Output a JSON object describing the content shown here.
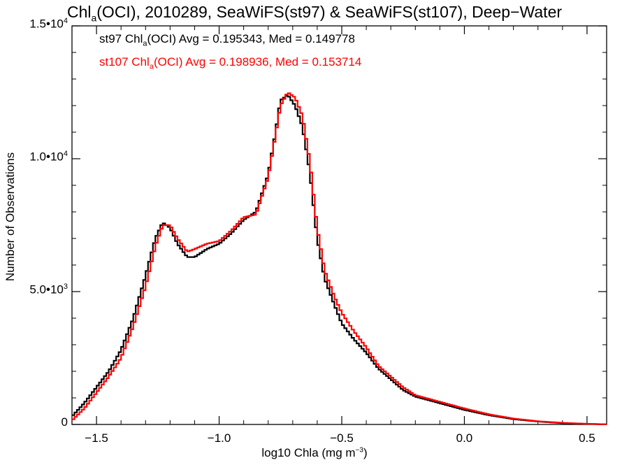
{
  "chart_data": {
    "type": "line",
    "title": {
      "pre": "Chl",
      "sub": "a",
      "post": "(OCI), 2010289, SeaWiFS(st97) & SeaWiFS(st107), Deep−Water"
    },
    "xlabel": {
      "pre": "log10 Chla (mg m",
      "sup": "−3",
      "post": ")"
    },
    "ylabel": "Number of Observations",
    "xlim": [
      -1.6,
      0.58
    ],
    "ylim": [
      0,
      15000
    ],
    "xticks": [
      "−1.5",
      "−1.0",
      "−0.5",
      "0.0",
      "0.5"
    ],
    "xtick_values": [
      -1.5,
      -1.0,
      -0.5,
      0.0,
      0.5
    ],
    "yticks": [
      {
        "value": 0,
        "mant": "0",
        "exp": ""
      },
      {
        "value": 5000,
        "mant": "5.0•10",
        "exp": "3"
      },
      {
        "value": 10000,
        "mant": "1.0•10",
        "exp": "4"
      },
      {
        "value": 15000,
        "mant": "1.5•10",
        "exp": "4"
      }
    ],
    "grid": false,
    "step": "histogram",
    "annotations": [
      {
        "pre": "st97 Chl",
        "sub": "a",
        "post": "(OCI) Avg = 0.195343, Med = 0.149778",
        "color": "#000000"
      },
      {
        "pre": "st107 Chl",
        "sub": "a",
        "post": "(OCI) Avg = 0.198936, Med = 0.153714",
        "color": "#ff0000"
      }
    ],
    "series": [
      {
        "name": "st97",
        "color": "#000000",
        "points": [
          [
            -1.6,
            300
          ],
          [
            -1.55,
            800
          ],
          [
            -1.5,
            1400
          ],
          [
            -1.45,
            2000
          ],
          [
            -1.4,
            2800
          ],
          [
            -1.35,
            4000
          ],
          [
            -1.3,
            5600
          ],
          [
            -1.26,
            7000
          ],
          [
            -1.23,
            7600
          ],
          [
            -1.2,
            7400
          ],
          [
            -1.17,
            6800
          ],
          [
            -1.13,
            6300
          ],
          [
            -1.1,
            6300
          ],
          [
            -1.05,
            6600
          ],
          [
            -1.0,
            6800
          ],
          [
            -0.95,
            7200
          ],
          [
            -0.9,
            7700
          ],
          [
            -0.85,
            8000
          ],
          [
            -0.8,
            9400
          ],
          [
            -0.77,
            11000
          ],
          [
            -0.75,
            12200
          ],
          [
            -0.72,
            12400
          ],
          [
            -0.69,
            12000
          ],
          [
            -0.66,
            11200
          ],
          [
            -0.63,
            9500
          ],
          [
            -0.6,
            7000
          ],
          [
            -0.57,
            5500
          ],
          [
            -0.53,
            4500
          ],
          [
            -0.5,
            3800
          ],
          [
            -0.45,
            3200
          ],
          [
            -0.4,
            2700
          ],
          [
            -0.35,
            2100
          ],
          [
            -0.3,
            1700
          ],
          [
            -0.25,
            1300
          ],
          [
            -0.2,
            1050
          ],
          [
            -0.1,
            800
          ],
          [
            0.0,
            550
          ],
          [
            0.1,
            350
          ],
          [
            0.2,
            200
          ],
          [
            0.3,
            110
          ],
          [
            0.4,
            50
          ],
          [
            0.5,
            20
          ],
          [
            0.58,
            5
          ]
        ]
      },
      {
        "name": "st107",
        "color": "#ff0000",
        "points": [
          [
            -1.6,
            150
          ],
          [
            -1.55,
            600
          ],
          [
            -1.5,
            1200
          ],
          [
            -1.45,
            1800
          ],
          [
            -1.4,
            2500
          ],
          [
            -1.35,
            3700
          ],
          [
            -1.3,
            5200
          ],
          [
            -1.26,
            6700
          ],
          [
            -1.23,
            7500
          ],
          [
            -1.2,
            7500
          ],
          [
            -1.17,
            7000
          ],
          [
            -1.13,
            6500
          ],
          [
            -1.1,
            6600
          ],
          [
            -1.05,
            6800
          ],
          [
            -1.0,
            6900
          ],
          [
            -0.95,
            7300
          ],
          [
            -0.9,
            7800
          ],
          [
            -0.85,
            7900
          ],
          [
            -0.8,
            9300
          ],
          [
            -0.77,
            10900
          ],
          [
            -0.75,
            12000
          ],
          [
            -0.72,
            12500
          ],
          [
            -0.69,
            12300
          ],
          [
            -0.66,
            11600
          ],
          [
            -0.63,
            9900
          ],
          [
            -0.6,
            7400
          ],
          [
            -0.57,
            5800
          ],
          [
            -0.53,
            4800
          ],
          [
            -0.5,
            4200
          ],
          [
            -0.45,
            3500
          ],
          [
            -0.4,
            2900
          ],
          [
            -0.35,
            2200
          ],
          [
            -0.3,
            1800
          ],
          [
            -0.25,
            1400
          ],
          [
            -0.2,
            1100
          ],
          [
            -0.1,
            850
          ],
          [
            0.0,
            600
          ],
          [
            0.1,
            380
          ],
          [
            0.2,
            220
          ],
          [
            0.3,
            120
          ],
          [
            0.4,
            60
          ],
          [
            0.5,
            25
          ],
          [
            0.58,
            5
          ]
        ]
      }
    ]
  }
}
